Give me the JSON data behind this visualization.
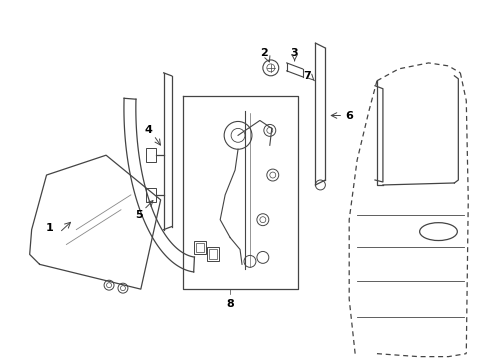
{
  "background_color": "#ffffff",
  "line_color": "#444444",
  "label_color": "#000000",
  "parts": [
    {
      "id": "1"
    },
    {
      "id": "2"
    },
    {
      "id": "3"
    },
    {
      "id": "4"
    },
    {
      "id": "5"
    },
    {
      "id": "6"
    },
    {
      "id": "7"
    },
    {
      "id": "8"
    }
  ]
}
